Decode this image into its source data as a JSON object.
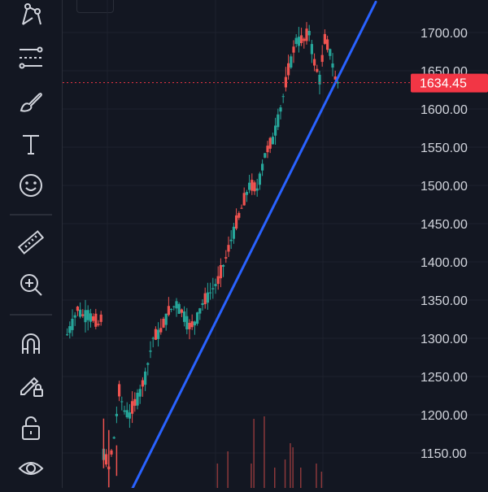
{
  "toolbar": {
    "tools": [
      {
        "name": "pattern-tool-icon"
      },
      {
        "name": "fib-retracement-icon"
      },
      {
        "name": "brush-icon"
      },
      {
        "name": "text-tool-icon"
      },
      {
        "name": "emoji-icon"
      },
      {
        "name": "ruler-icon"
      },
      {
        "name": "zoom-in-icon"
      },
      {
        "name": "magnet-icon"
      },
      {
        "name": "lock-drawing-icon"
      },
      {
        "name": "lock-icon"
      },
      {
        "name": "eye-icon"
      }
    ]
  },
  "colors": {
    "background": "#131722",
    "up": "#26a69a",
    "down": "#ef5350",
    "trendline": "#2962ff",
    "price_tag": "#f23645",
    "axis_text": "#d1d4dc",
    "grid": "#1e222d"
  },
  "chart_data": {
    "type": "candlestick",
    "y_axis": {
      "ticks": [
        "1700.00",
        "1650.00",
        "1600.00",
        "1550.00",
        "1500.00",
        "1450.00",
        "1400.00",
        "1350.00",
        "1300.00",
        "1250.00",
        "1200.00",
        "1150.00"
      ],
      "range": [
        1100,
        1730
      ]
    },
    "last_price": "1634.45",
    "last_price_value": 1634.45,
    "trendline": {
      "from": 1070,
      "to": 1740
    },
    "grid": true,
    "path": [
      [
        0,
        1305
      ],
      [
        2,
        1320
      ],
      [
        4,
        1338
      ],
      [
        6,
        1330
      ],
      [
        8,
        1332
      ],
      [
        10,
        1325
      ],
      [
        12,
        1318
      ],
      [
        13,
        1325
      ],
      [
        14,
        1150
      ],
      [
        16,
        1130
      ],
      [
        18,
        1170
      ],
      [
        20,
        1230
      ],
      [
        22,
        1205
      ],
      [
        24,
        1200
      ],
      [
        26,
        1215
      ],
      [
        28,
        1230
      ],
      [
        30,
        1250
      ],
      [
        33,
        1300
      ],
      [
        36,
        1310
      ],
      [
        39,
        1335
      ],
      [
        42,
        1345
      ],
      [
        45,
        1330
      ],
      [
        47,
        1315
      ],
      [
        49,
        1320
      ],
      [
        52,
        1345
      ],
      [
        55,
        1360
      ],
      [
        58,
        1375
      ],
      [
        61,
        1405
      ],
      [
        64,
        1440
      ],
      [
        67,
        1470
      ],
      [
        70,
        1500
      ],
      [
        73,
        1495
      ],
      [
        76,
        1540
      ],
      [
        79,
        1560
      ],
      [
        82,
        1600
      ],
      [
        85,
        1650
      ],
      [
        88,
        1690
      ],
      [
        91,
        1690
      ],
      [
        93,
        1700
      ],
      [
        95,
        1660
      ],
      [
        97,
        1640
      ],
      [
        99,
        1690
      ],
      [
        101,
        1675
      ],
      [
        103,
        1640
      ],
      [
        104,
        1634.45
      ]
    ],
    "volume": [
      {
        "i": 58,
        "h": 30
      },
      {
        "i": 62,
        "h": 45
      },
      {
        "i": 71,
        "h": 30
      },
      {
        "i": 72,
        "h": 85
      },
      {
        "i": 76,
        "h": 88
      },
      {
        "i": 80,
        "h": 25
      },
      {
        "i": 84,
        "h": 35
      },
      {
        "i": 86,
        "h": 55
      },
      {
        "i": 87,
        "h": 50
      },
      {
        "i": 90,
        "h": 25
      },
      {
        "i": 96,
        "h": 30
      },
      {
        "i": 98,
        "h": 20
      }
    ]
  }
}
